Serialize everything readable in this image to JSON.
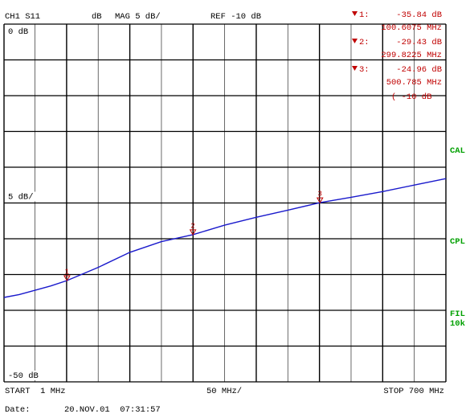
{
  "chart_data": {
    "type": "line",
    "title": "CH1 S11",
    "format_label": "dB",
    "scale_label": "MAG 5 dB/",
    "ref_label": "REF -10 dB",
    "xlim": [
      1,
      700
    ],
    "ylim": [
      -50,
      0
    ],
    "xticks": [
      1,
      50,
      100,
      150,
      200,
      250,
      300,
      350,
      400,
      450,
      500,
      550,
      600,
      650,
      700
    ],
    "yticks": [
      0,
      -5,
      -10,
      -15,
      -20,
      -25,
      -30,
      -35,
      -40,
      -45,
      -50
    ],
    "ytick_labels": [
      {
        "value": 0,
        "label": "0 dB"
      },
      {
        "value": -25,
        "label": "5 dB/"
      },
      {
        "value": -50,
        "label": "-50 dB"
      }
    ],
    "grid": true,
    "series": [
      {
        "color": "#1a1acc",
        "x": [
          1,
          25,
          50,
          75,
          100.6075,
          150,
          200,
          250,
          299.8225,
          350,
          400,
          450,
          500.785,
          550,
          600,
          650,
          700
        ],
        "values": [
          -38.2,
          -37.8,
          -37.2,
          -36.6,
          -35.84,
          -34.0,
          -31.9,
          -30.4,
          -29.43,
          -28.1,
          -27.0,
          -26.0,
          -24.96,
          -24.2,
          -23.4,
          -22.5,
          -21.6
        ]
      }
    ],
    "marker_color": "#c00000",
    "markers": [
      {
        "name": "1",
        "readout_label": "1:",
        "x": 100.6075,
        "x_label": "100.6075 MHz",
        "value": -35.84,
        "value_label": "-35.84 dB"
      },
      {
        "name": "2",
        "readout_label": "2:",
        "x": 299.8225,
        "x_label": "299.8225 MHz",
        "value": -29.43,
        "value_label": "-29.43 dB"
      },
      {
        "name": "3",
        "readout_label": "3:",
        "x": 500.785,
        "x_label": "500.785 MHz",
        "value": -24.96,
        "value_label": "-24.96 dB"
      }
    ],
    "ref_marker_label": "( -10 dB",
    "side_color": "#00a000",
    "side_labels": [
      "CAL",
      "CPL",
      "FIL",
      "10k"
    ],
    "x_start_label": "START  1 MHz",
    "x_div_label": "50 MHz/",
    "x_stop_label": "STOP 700 MHz",
    "date_caption": "Date:",
    "date": "20.NOV.01  07:31:57"
  }
}
